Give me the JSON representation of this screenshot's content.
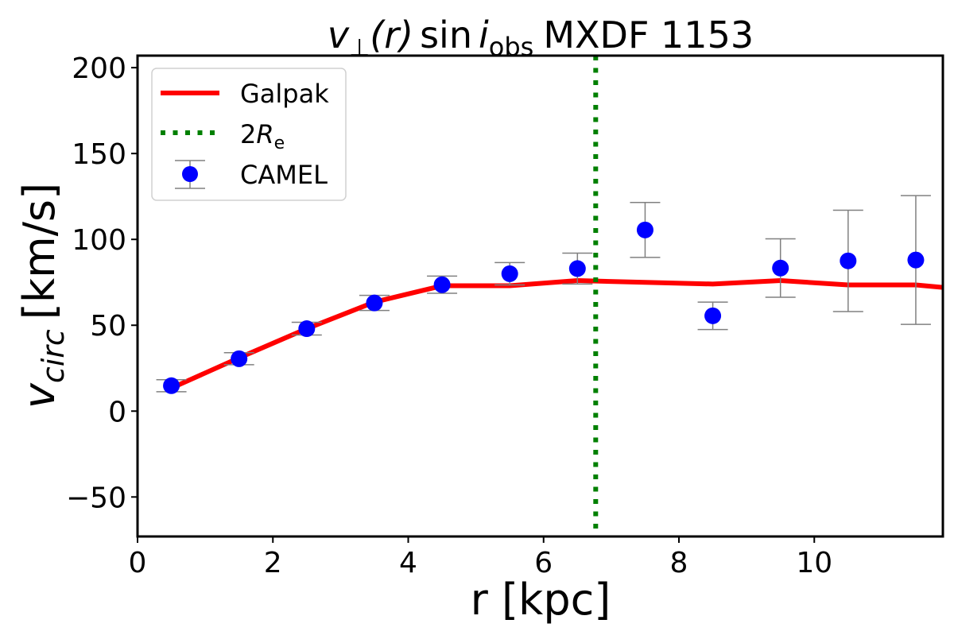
{
  "chart_data": {
    "type": "scatter",
    "title": {
      "v": "v",
      "perp": "⊥",
      "r": "(r)",
      "sin": "sin",
      "i": "i",
      "obs": "obs",
      "rest": "MXDF 1153"
    },
    "xlabel": "r [kpc]",
    "ylabel": {
      "main": "v",
      "sub": "circ",
      "unit": "[km/s]"
    },
    "xlim": [
      0,
      11.9
    ],
    "ylim": [
      -73,
      207
    ],
    "xticks": [
      0,
      2,
      4,
      6,
      8,
      10
    ],
    "yticks": [
      -50,
      0,
      50,
      100,
      150,
      200
    ],
    "ytick_labels": [
      "−50",
      "0",
      "50",
      "100",
      "150",
      "200"
    ],
    "grid": false,
    "legend_position": "top-left",
    "series": [
      {
        "name": "Galpak",
        "type": "line",
        "color": "#ff0000",
        "x": [
          0.5,
          1.5,
          2.5,
          3.5,
          4.5,
          5.5,
          6.5,
          7.5,
          8.5,
          9.5,
          10.5,
          11.5,
          11.9
        ],
        "y": [
          13.4,
          31,
          48,
          63.5,
          73,
          73,
          76,
          75,
          74,
          76,
          73.5,
          73.5,
          72
        ]
      },
      {
        "name": "2R",
        "name_sub": "e",
        "type": "vline",
        "color": "#008000",
        "x": 6.77
      },
      {
        "name": "CAMEL",
        "type": "errorbar",
        "color": "#0000ff",
        "errcolor": "#808080",
        "x": [
          0.5,
          1.5,
          2.5,
          3.5,
          4.5,
          5.5,
          6.5,
          7.5,
          8.5,
          9.5,
          10.5,
          11.5
        ],
        "y": [
          14.8,
          30.5,
          48,
          63,
          73.6,
          80,
          83,
          105.5,
          55.5,
          83.3,
          87.5,
          88
        ],
        "yerr": [
          3.5,
          3.5,
          3.7,
          4.4,
          5,
          6.5,
          9,
          16,
          8,
          17,
          29.5,
          37.5
        ]
      }
    ]
  }
}
